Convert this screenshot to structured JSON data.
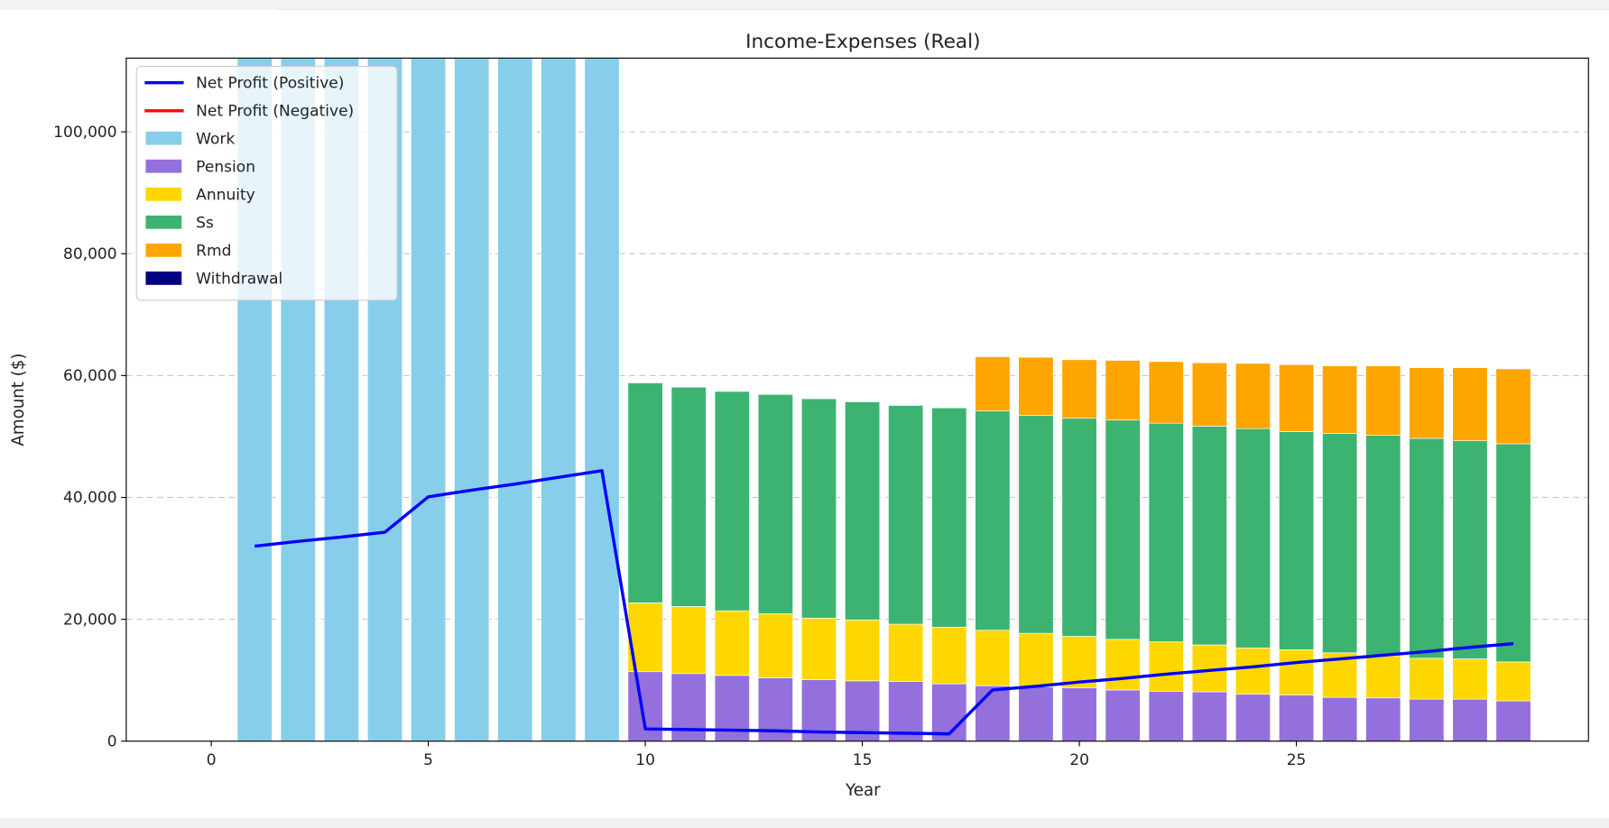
{
  "chart_data": {
    "type": "bar",
    "stacked": true,
    "title": "Income-Expenses (Real)",
    "xlabel": "Year",
    "ylabel": "Amount ($)",
    "xlim": [
      -1.96,
      31.73
    ],
    "ylim": [
      0,
      112100
    ],
    "xticks": [
      0,
      5,
      10,
      15,
      20,
      25
    ],
    "yticks": [
      0,
      20000,
      40000,
      60000,
      80000,
      100000
    ],
    "ytick_labels": [
      "0",
      "20,000",
      "40,000",
      "60,000",
      "80,000",
      "100,000"
    ],
    "grid": "y dashed",
    "legend_position": "top-left",
    "x": [
      1,
      2,
      3,
      4,
      5,
      6,
      7,
      8,
      9,
      10,
      11,
      12,
      13,
      14,
      15,
      16,
      17,
      18,
      19,
      20,
      21,
      22,
      23,
      24,
      25,
      26,
      27,
      28,
      29,
      30
    ],
    "series": [
      {
        "name": "Work",
        "color": "#87CEEB",
        "values": [
          120000,
          120000,
          120000,
          120000,
          120000,
          120000,
          120000,
          120000,
          120000,
          0,
          0,
          0,
          0,
          0,
          0,
          0,
          0,
          0,
          0,
          0,
          0,
          0,
          0,
          0,
          0,
          0,
          0,
          0,
          0,
          0
        ]
      },
      {
        "name": "Pension",
        "color": "#9370DB",
        "values": [
          0,
          0,
          0,
          0,
          0,
          0,
          0,
          0,
          0,
          11400,
          11100,
          10800,
          10400,
          10100,
          9900,
          9800,
          9400,
          9100,
          8900,
          8750,
          8400,
          8200,
          8100,
          7700,
          7600,
          7200,
          7100,
          6900,
          6900,
          6600
        ]
      },
      {
        "name": "Annuity",
        "color": "#FFD700",
        "values": [
          0,
          0,
          0,
          0,
          0,
          0,
          0,
          0,
          0,
          11300,
          11000,
          10600,
          10500,
          10100,
          10000,
          9400,
          9300,
          9100,
          8800,
          8450,
          8300,
          8100,
          7700,
          7600,
          7400,
          7300,
          6900,
          6700,
          6600,
          6400
        ]
      },
      {
        "name": "Ss",
        "color": "#3CB371",
        "values": [
          0,
          0,
          0,
          0,
          0,
          0,
          0,
          0,
          0,
          36100,
          36000,
          36000,
          36000,
          36000,
          35800,
          35900,
          36000,
          36000,
          35800,
          35800,
          36000,
          35900,
          35900,
          36000,
          35800,
          36000,
          36200,
          36100,
          35800,
          35800
        ]
      },
      {
        "name": "Rmd",
        "color": "#FFA500",
        "values": [
          0,
          0,
          0,
          0,
          0,
          0,
          0,
          0,
          0,
          0,
          0,
          0,
          0,
          0,
          0,
          0,
          0,
          8900,
          9500,
          9600,
          9800,
          10100,
          10400,
          10700,
          11000,
          11100,
          11400,
          11600,
          12000,
          12300
        ]
      },
      {
        "name": "Withdrawal",
        "color": "#000080",
        "values": [
          0,
          0,
          0,
          0,
          0,
          0,
          0,
          0,
          0,
          0,
          0,
          0,
          0,
          0,
          0,
          0,
          0,
          0,
          0,
          0,
          0,
          0,
          0,
          0,
          0,
          0,
          0,
          0,
          0,
          0
        ]
      }
    ],
    "lines": [
      {
        "name": "Net Profit (Positive)",
        "color": "#0000FF",
        "values": [
          32000,
          32800,
          33500,
          34300,
          40100,
          41200,
          42200,
          43300,
          44400,
          2000,
          1900,
          1800,
          1700,
          1500,
          1400,
          1300,
          1200,
          8400,
          9000,
          9700,
          10300,
          11000,
          11600,
          12200,
          12900,
          13500,
          14100,
          14700,
          15400,
          16000
        ]
      },
      {
        "name": "Net Profit (Negative)",
        "color": "#FF0000",
        "values": []
      }
    ]
  }
}
